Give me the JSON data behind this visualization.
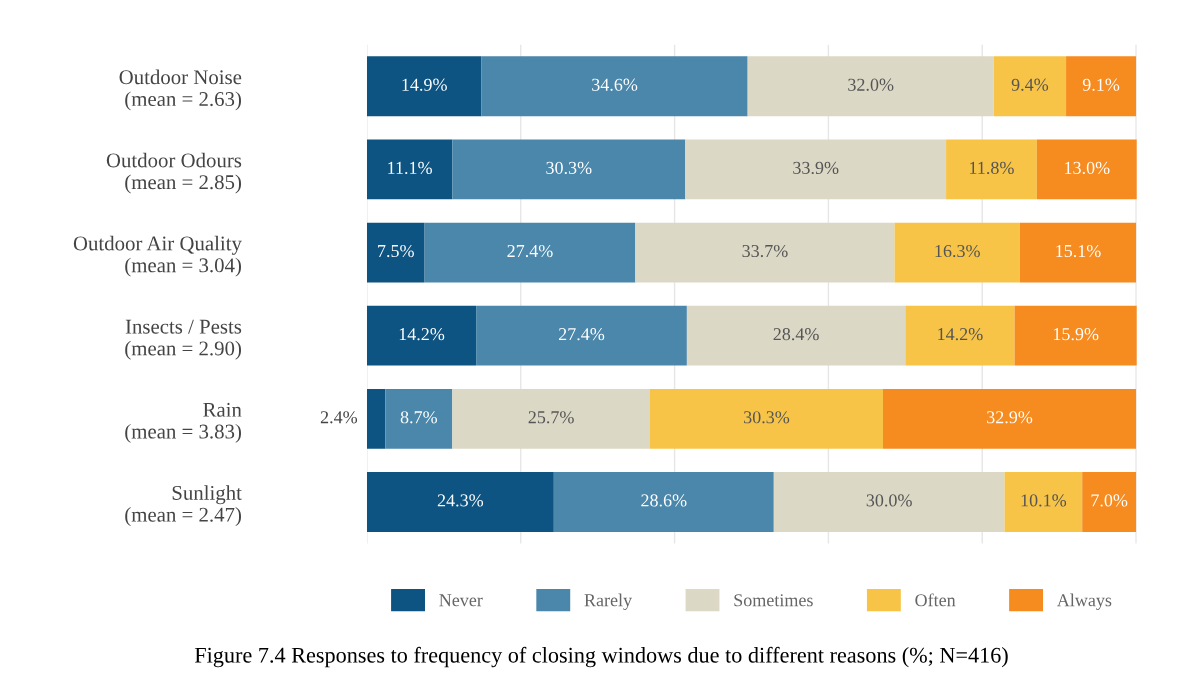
{
  "chart_data": {
    "type": "bar",
    "orientation": "horizontal",
    "stacked": true,
    "categories": [
      "Outdoor Noise\n(mean = 2.63)",
      "Outdoor Odours\n(mean = 2.85)",
      "Outdoor Air Quality\n(mean = 3.04)",
      "Insects / Pests\n(mean = 2.90)",
      "Rain\n(mean = 3.83)",
      "Sunlight\n(mean = 2.47)"
    ],
    "series": [
      {
        "name": "Never",
        "color": "#0e5482",
        "values": [
          14.9,
          11.1,
          7.5,
          14.2,
          2.4,
          24.3
        ],
        "value_labels": [
          "14.9%",
          "11.1%",
          "7.5%",
          "14.2%",
          "2.4%",
          "24.3%"
        ]
      },
      {
        "name": "Rarely",
        "color": "#4a87ab",
        "values": [
          34.6,
          30.3,
          27.4,
          27.4,
          8.7,
          28.6
        ],
        "value_labels": [
          "34.6%",
          "30.3%",
          "27.4%",
          "27.4%",
          "8.7%",
          "28.6%"
        ]
      },
      {
        "name": "Sometimes",
        "color": "#dcd8c6",
        "values": [
          32.0,
          33.9,
          33.7,
          28.4,
          25.7,
          30.0
        ],
        "value_labels": [
          "32.0%",
          "33.9%",
          "33.7%",
          "28.4%",
          "25.7%",
          "30.0%"
        ]
      },
      {
        "name": "Often",
        "color": "#f7c448",
        "values": [
          9.4,
          11.8,
          16.3,
          14.2,
          30.3,
          10.1
        ],
        "value_labels": [
          "9.4%",
          "11.8%",
          "16.3%",
          "14.2%",
          "30.3%",
          "10.1%"
        ]
      },
      {
        "name": "Always",
        "color": "#f68b1f",
        "values": [
          9.1,
          13.0,
          15.1,
          15.9,
          32.9,
          7.0
        ],
        "value_labels": [
          "9.1%",
          "13.0%",
          "15.1%",
          "15.9%",
          "32.9%",
          "7.0%"
        ]
      }
    ],
    "grid": "x",
    "tick_labels": "y",
    "legend": "bottom",
    "annotations": [
      "Figure 7.4 Responses to frequency of closing windows due to different reasons (%; N=416)"
    ]
  }
}
